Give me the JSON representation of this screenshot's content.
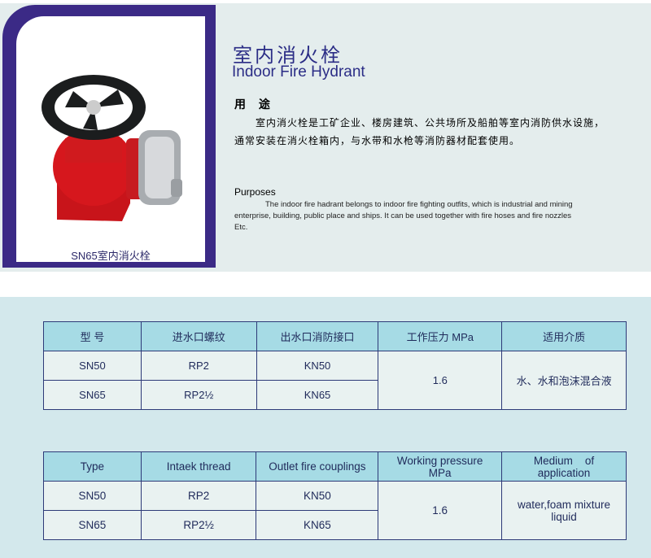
{
  "product": {
    "caption": "SN65室内消火栓",
    "title_cn": "室内消火栓",
    "title_en": "Indoor Fire Hydrant"
  },
  "usage": {
    "heading": "用 途",
    "line1": "室内消火栓是工矿企业、楼房建筑、公共场所及船舶等室内消防供水设施，",
    "line2": "通常安装在消火栓箱内，与水带和水枪等消防器材配套使用。"
  },
  "purposes": {
    "heading": "Purposes",
    "line1": "The indoor fire hadrant belongs to indoor fire fighting outfits, which is industrial and mining",
    "line2": "enterprise, building, public place and ships. It can be used together with fire hoses and fire nozzles",
    "line3": "Etc."
  },
  "table_cn": {
    "headers": [
      "型 号",
      "进水口螺纹",
      "出水口消防接口",
      "工作压力 MPa",
      "适用介质"
    ],
    "rows": [
      [
        "SN50",
        "RP2",
        "KN50"
      ],
      [
        "SN65",
        "RP2½",
        "KN65"
      ]
    ],
    "pressure": "1.6",
    "medium": "水、水和泡沫混合液"
  },
  "table_en": {
    "headers": [
      "Type",
      "Intaek thread",
      "Outlet fire couplings",
      "Working pressure MPa",
      "Medium    of application"
    ],
    "rows": [
      [
        "SN50",
        "RP2",
        "KN50"
      ],
      [
        "SN65",
        "RP2½",
        "KN65"
      ]
    ],
    "pressure": "1.6",
    "medium": "water,foam mixture liquid"
  }
}
